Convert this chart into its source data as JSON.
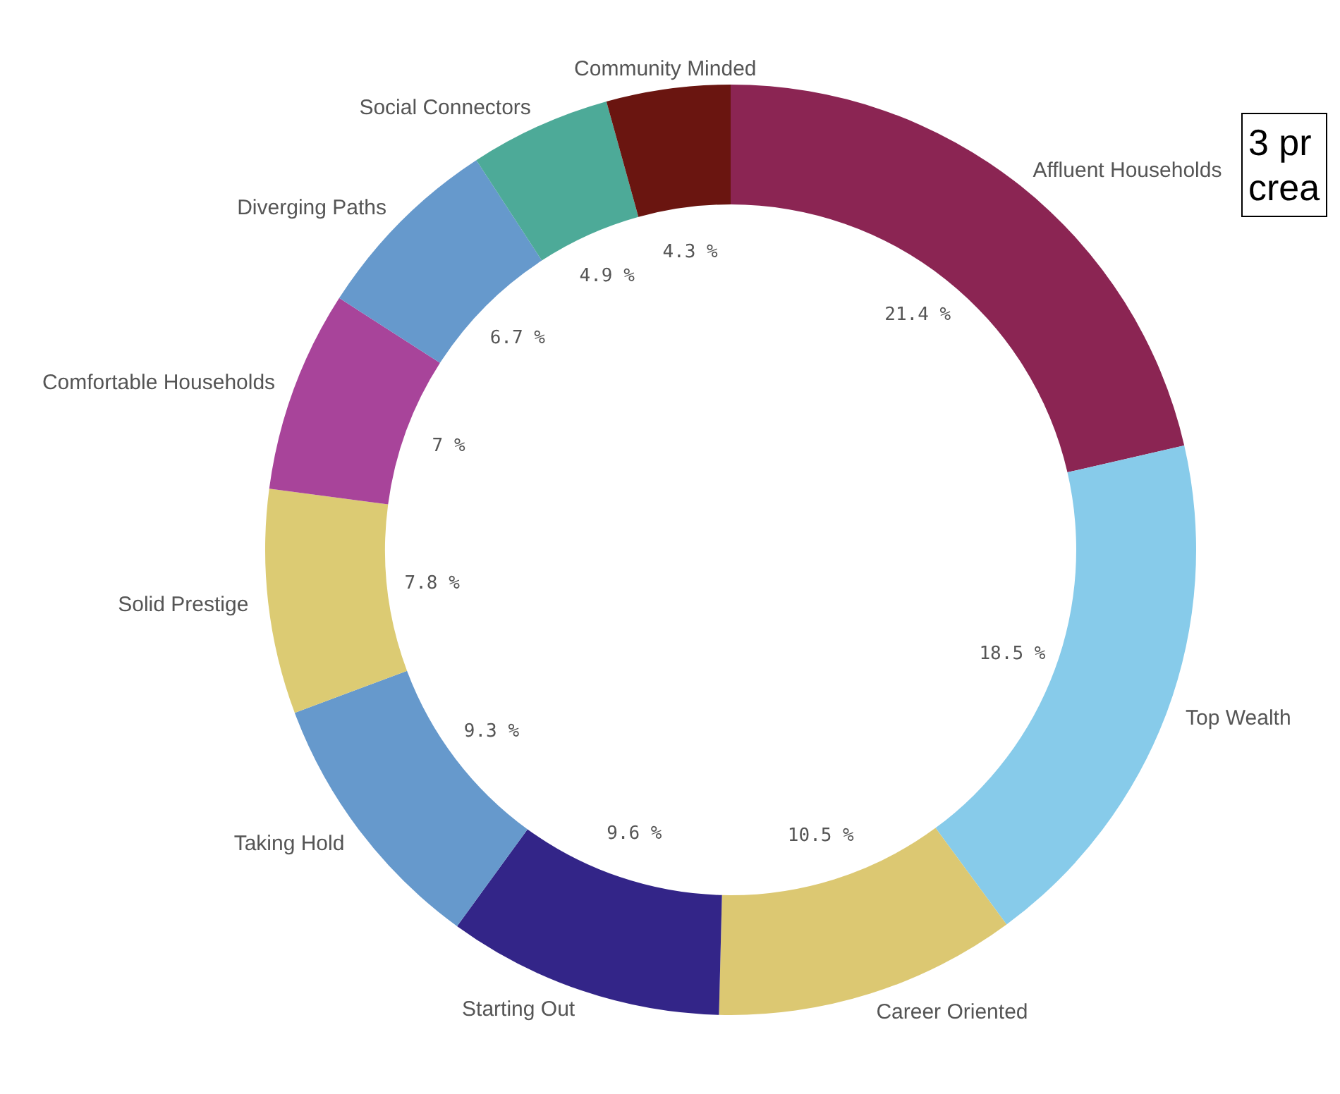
{
  "chart_data": {
    "type": "donut",
    "categories": [
      "Affluent Households",
      "Top Wealth",
      "Career Oriented",
      "Starting Out",
      "Taking Hold",
      "Solid Prestige",
      "Comfortable Households",
      "Diverging Paths",
      "Social Connectors",
      "Community Minded"
    ],
    "values": [
      21.4,
      18.5,
      10.5,
      9.6,
      9.3,
      7.8,
      7,
      6.7,
      4.9,
      4.3
    ],
    "value_labels": [
      "21.4 %",
      "18.5 %",
      "10.5 %",
      "9.6 %",
      "9.3 %",
      "7.8 %",
      "7 %",
      "6.7 %",
      "4.9 %",
      "4.3 %"
    ],
    "colors": [
      "#8b2553",
      "#87cbea",
      "#dcc872",
      "#332588",
      "#6699cc",
      "#dccb73",
      "#a8449a",
      "#6699cc",
      "#4daa98",
      "#6a1510"
    ],
    "annotations": [
      "3 pr",
      "crea"
    ]
  }
}
